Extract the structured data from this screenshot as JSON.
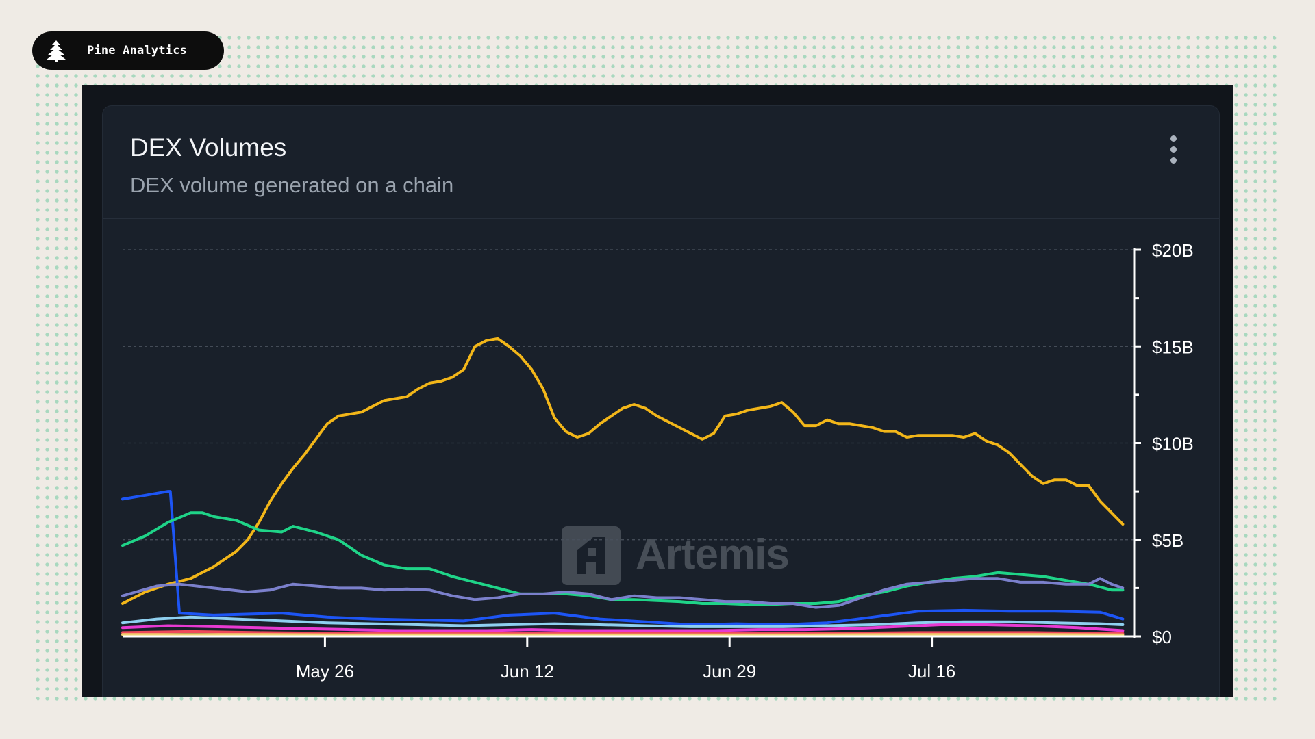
{
  "brand": {
    "name": "Pine Analytics",
    "icon": "pine-tree-icon"
  },
  "card": {
    "title": "DEX Volumes",
    "subtitle": "DEX volume generated on a chain",
    "menu_icon": "kebab-menu-icon"
  },
  "watermark": {
    "text": "Artemis",
    "icon": "artemis-logo-icon"
  },
  "colors": {
    "page_bg": "#efebe5",
    "dots": "#a9d8bf",
    "card_bg": "#19202a",
    "grid": "#4a525e",
    "axis": "#ffffff"
  },
  "chart_data": {
    "type": "line",
    "title": "DEX Volumes",
    "subtitle": "DEX volume generated on a chain",
    "y_axis_position": "right",
    "ylim": [
      0,
      20
    ],
    "y_unit": "billions USD",
    "y_ticks": [
      {
        "value": 0,
        "label": "$0"
      },
      {
        "value": 5,
        "label": "$5B"
      },
      {
        "value": 10,
        "label": "$10B"
      },
      {
        "value": 15,
        "label": "$15B"
      },
      {
        "value": 20,
        "label": "$20B"
      }
    ],
    "y_minor_ticks": [
      2.5,
      7.5,
      12.5,
      17.5
    ],
    "x_range_days": [
      0,
      89
    ],
    "x_ticks": [
      {
        "day": 17.8,
        "label": "May 26"
      },
      {
        "day": 35.6,
        "label": "Jun 12"
      },
      {
        "day": 53.4,
        "label": "Jun 29"
      },
      {
        "day": 71.2,
        "label": "Jul 16"
      }
    ],
    "grid": "horizontal-dashed",
    "legend": "none",
    "series": [
      {
        "color": "#f2b619",
        "points": [
          [
            0,
            1.7
          ],
          [
            2,
            2.3
          ],
          [
            4,
            2.7
          ],
          [
            6,
            3.0
          ],
          [
            8,
            3.6
          ],
          [
            10,
            4.4
          ],
          [
            11,
            5.0
          ],
          [
            12,
            5.9
          ],
          [
            13,
            7.0
          ],
          [
            14,
            7.9
          ],
          [
            15,
            8.7
          ],
          [
            16,
            9.4
          ],
          [
            17,
            10.2
          ],
          [
            18,
            11.0
          ],
          [
            19,
            11.4
          ],
          [
            21,
            11.6
          ],
          [
            22,
            11.9
          ],
          [
            23,
            12.2
          ],
          [
            24,
            12.3
          ],
          [
            25,
            12.4
          ],
          [
            26,
            12.8
          ],
          [
            27,
            13.1
          ],
          [
            28,
            13.2
          ],
          [
            29,
            13.4
          ],
          [
            30,
            13.8
          ],
          [
            31,
            15.0
          ],
          [
            32,
            15.3
          ],
          [
            33,
            15.4
          ],
          [
            34,
            15.0
          ],
          [
            35,
            14.5
          ],
          [
            36,
            13.8
          ],
          [
            37,
            12.8
          ],
          [
            38,
            11.3
          ],
          [
            39,
            10.6
          ],
          [
            40,
            10.3
          ],
          [
            41,
            10.5
          ],
          [
            42,
            11.0
          ],
          [
            44,
            11.8
          ],
          [
            45,
            12.0
          ],
          [
            46,
            11.8
          ],
          [
            47,
            11.4
          ],
          [
            48,
            11.1
          ],
          [
            49,
            10.8
          ],
          [
            50,
            10.5
          ],
          [
            51,
            10.2
          ],
          [
            52,
            10.5
          ],
          [
            53,
            11.4
          ],
          [
            54,
            11.5
          ],
          [
            55,
            11.7
          ],
          [
            56,
            11.8
          ],
          [
            57,
            11.9
          ],
          [
            58,
            12.1
          ],
          [
            59,
            11.6
          ],
          [
            60,
            10.9
          ],
          [
            61,
            10.9
          ],
          [
            62,
            11.2
          ],
          [
            63,
            11.0
          ],
          [
            64,
            11.0
          ],
          [
            65,
            10.9
          ],
          [
            66,
            10.8
          ],
          [
            67,
            10.6
          ],
          [
            68,
            10.6
          ],
          [
            69,
            10.3
          ],
          [
            70,
            10.4
          ],
          [
            71,
            10.4
          ],
          [
            72,
            10.4
          ],
          [
            73,
            10.4
          ],
          [
            74,
            10.3
          ],
          [
            75,
            10.5
          ],
          [
            76,
            10.1
          ],
          [
            77,
            9.9
          ],
          [
            78,
            9.5
          ],
          [
            79,
            8.9
          ],
          [
            80,
            8.3
          ],
          [
            81,
            7.9
          ],
          [
            82,
            8.1
          ],
          [
            83,
            8.1
          ],
          [
            84,
            7.8
          ],
          [
            85,
            7.8
          ],
          [
            86,
            7.0
          ],
          [
            87,
            6.4
          ],
          [
            88,
            5.8
          ]
        ]
      },
      {
        "color": "#1d55f5",
        "points": [
          [
            0,
            7.1
          ],
          [
            2,
            7.3
          ],
          [
            4,
            7.5
          ],
          [
            4.2,
            7.5
          ],
          [
            5,
            1.2
          ],
          [
            8,
            1.1
          ],
          [
            14,
            1.2
          ],
          [
            18,
            1.0
          ],
          [
            22,
            0.9
          ],
          [
            26,
            0.85
          ],
          [
            30,
            0.8
          ],
          [
            34,
            1.1
          ],
          [
            38,
            1.2
          ],
          [
            42,
            0.9
          ],
          [
            46,
            0.75
          ],
          [
            50,
            0.6
          ],
          [
            54,
            0.65
          ],
          [
            58,
            0.6
          ],
          [
            62,
            0.7
          ],
          [
            66,
            1.0
          ],
          [
            70,
            1.3
          ],
          [
            74,
            1.35
          ],
          [
            78,
            1.3
          ],
          [
            82,
            1.3
          ],
          [
            86,
            1.25
          ],
          [
            88,
            0.9
          ]
        ]
      },
      {
        "color": "#1fd488",
        "points": [
          [
            0,
            4.7
          ],
          [
            2,
            5.2
          ],
          [
            4,
            5.9
          ],
          [
            6,
            6.4
          ],
          [
            7,
            6.4
          ],
          [
            8,
            6.2
          ],
          [
            10,
            6.0
          ],
          [
            12,
            5.5
          ],
          [
            14,
            5.4
          ],
          [
            15,
            5.7
          ],
          [
            17,
            5.4
          ],
          [
            19,
            5.0
          ],
          [
            21,
            4.2
          ],
          [
            23,
            3.7
          ],
          [
            25,
            3.5
          ],
          [
            27,
            3.5
          ],
          [
            29,
            3.1
          ],
          [
            31,
            2.8
          ],
          [
            33,
            2.5
          ],
          [
            35,
            2.2
          ],
          [
            37,
            2.2
          ],
          [
            39,
            2.2
          ],
          [
            41,
            2.1
          ],
          [
            43,
            1.9
          ],
          [
            45,
            1.9
          ],
          [
            47,
            1.85
          ],
          [
            49,
            1.8
          ],
          [
            51,
            1.7
          ],
          [
            53,
            1.7
          ],
          [
            55,
            1.65
          ],
          [
            57,
            1.65
          ],
          [
            59,
            1.7
          ],
          [
            61,
            1.7
          ],
          [
            63,
            1.8
          ],
          [
            65,
            2.1
          ],
          [
            67,
            2.3
          ],
          [
            69,
            2.6
          ],
          [
            71,
            2.8
          ],
          [
            73,
            3.0
          ],
          [
            75,
            3.1
          ],
          [
            77,
            3.3
          ],
          [
            79,
            3.2
          ],
          [
            81,
            3.1
          ],
          [
            83,
            2.9
          ],
          [
            85,
            2.7
          ],
          [
            87,
            2.4
          ],
          [
            88,
            2.4
          ]
        ]
      },
      {
        "color": "#7b80cc",
        "points": [
          [
            0,
            2.1
          ],
          [
            3,
            2.6
          ],
          [
            5,
            2.7
          ],
          [
            8,
            2.5
          ],
          [
            11,
            2.3
          ],
          [
            13,
            2.4
          ],
          [
            15,
            2.7
          ],
          [
            17,
            2.6
          ],
          [
            19,
            2.5
          ],
          [
            21,
            2.5
          ],
          [
            23,
            2.4
          ],
          [
            25,
            2.45
          ],
          [
            27,
            2.4
          ],
          [
            29,
            2.1
          ],
          [
            31,
            1.9
          ],
          [
            33,
            2.0
          ],
          [
            35,
            2.2
          ],
          [
            37,
            2.2
          ],
          [
            39,
            2.3
          ],
          [
            41,
            2.2
          ],
          [
            43,
            1.9
          ],
          [
            45,
            2.1
          ],
          [
            47,
            2.0
          ],
          [
            49,
            2.0
          ],
          [
            51,
            1.9
          ],
          [
            53,
            1.8
          ],
          [
            55,
            1.8
          ],
          [
            57,
            1.7
          ],
          [
            59,
            1.7
          ],
          [
            61,
            1.5
          ],
          [
            63,
            1.6
          ],
          [
            65,
            2.0
          ],
          [
            67,
            2.4
          ],
          [
            69,
            2.7
          ],
          [
            71,
            2.8
          ],
          [
            73,
            2.9
          ],
          [
            75,
            3.0
          ],
          [
            77,
            3.0
          ],
          [
            79,
            2.8
          ],
          [
            81,
            2.8
          ],
          [
            83,
            2.7
          ],
          [
            85,
            2.7
          ],
          [
            86,
            3.0
          ],
          [
            87,
            2.7
          ],
          [
            88,
            2.5
          ]
        ]
      },
      {
        "color": "#8fd0f0",
        "points": [
          [
            0,
            0.7
          ],
          [
            3,
            0.9
          ],
          [
            6,
            1.0
          ],
          [
            10,
            0.9
          ],
          [
            14,
            0.8
          ],
          [
            18,
            0.7
          ],
          [
            22,
            0.65
          ],
          [
            26,
            0.6
          ],
          [
            30,
            0.55
          ],
          [
            34,
            0.6
          ],
          [
            38,
            0.65
          ],
          [
            42,
            0.6
          ],
          [
            46,
            0.55
          ],
          [
            50,
            0.5
          ],
          [
            54,
            0.5
          ],
          [
            58,
            0.5
          ],
          [
            62,
            0.55
          ],
          [
            66,
            0.6
          ],
          [
            70,
            0.7
          ],
          [
            74,
            0.75
          ],
          [
            78,
            0.75
          ],
          [
            82,
            0.7
          ],
          [
            86,
            0.65
          ],
          [
            88,
            0.6
          ]
        ]
      },
      {
        "color": "#e83ad2",
        "points": [
          [
            0,
            0.45
          ],
          [
            4,
            0.55
          ],
          [
            8,
            0.5
          ],
          [
            12,
            0.45
          ],
          [
            16,
            0.4
          ],
          [
            20,
            0.35
          ],
          [
            24,
            0.3
          ],
          [
            28,
            0.3
          ],
          [
            32,
            0.3
          ],
          [
            36,
            0.35
          ],
          [
            40,
            0.3
          ],
          [
            44,
            0.3
          ],
          [
            48,
            0.3
          ],
          [
            52,
            0.3
          ],
          [
            56,
            0.35
          ],
          [
            60,
            0.35
          ],
          [
            64,
            0.4
          ],
          [
            68,
            0.5
          ],
          [
            72,
            0.6
          ],
          [
            76,
            0.6
          ],
          [
            80,
            0.55
          ],
          [
            84,
            0.45
          ],
          [
            88,
            0.3
          ]
        ]
      },
      {
        "color": "#f04a5a",
        "points": [
          [
            0,
            0.2
          ],
          [
            6,
            0.25
          ],
          [
            12,
            0.2
          ],
          [
            20,
            0.15
          ],
          [
            30,
            0.15
          ],
          [
            40,
            0.15
          ],
          [
            50,
            0.15
          ],
          [
            60,
            0.15
          ],
          [
            70,
            0.2
          ],
          [
            80,
            0.2
          ],
          [
            88,
            0.15
          ]
        ]
      },
      {
        "color": "#f0d070",
        "points": [
          [
            0,
            0.1
          ],
          [
            10,
            0.1
          ],
          [
            20,
            0.08
          ],
          [
            30,
            0.08
          ],
          [
            40,
            0.08
          ],
          [
            50,
            0.08
          ],
          [
            60,
            0.08
          ],
          [
            70,
            0.1
          ],
          [
            80,
            0.1
          ],
          [
            88,
            0.08
          ]
        ]
      }
    ]
  }
}
